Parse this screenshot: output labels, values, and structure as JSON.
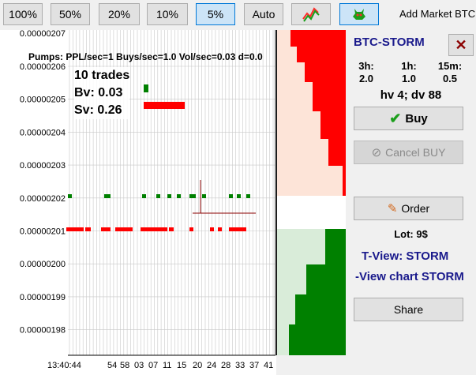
{
  "toolbar": {
    "zoom_buttons": [
      "100%",
      "50%",
      "20%",
      "10%",
      "5%",
      "Auto"
    ],
    "selected_zoom": "5%",
    "add_market": "Add Market BTC"
  },
  "chart": {
    "top_label": "0.00000207",
    "pumps_line": "Pumps: PPL/sec=1 Buys/sec=1.0  Vol/sec=0.03  d=0.0",
    "trades": "10 trades",
    "bv": "Bv: 0.03",
    "sv": "Sv: 0.26",
    "y_labels": [
      "0.00000206",
      "0.00000205",
      "0.00000204",
      "0.00000203",
      "0.00000202",
      "0.00000201",
      "0.00000200",
      "0.00000199",
      "0.00000198"
    ],
    "x_labels": [
      "13:40:44",
      "54",
      "58",
      "03",
      "07",
      "11",
      "15",
      "20",
      "24",
      "28",
      "33",
      "37",
      "41"
    ],
    "colors": {
      "buy": "#008000",
      "sell": "#ff0000",
      "grid": "#c8c8c8"
    }
  },
  "panel": {
    "pair": "BTC-STORM",
    "close_icon": "close-x-icon",
    "timeframes": [
      {
        "label": "3h:",
        "value": "2.0"
      },
      {
        "label": "1h:",
        "value": "1.0"
      },
      {
        "label": "15m:",
        "value": "0.5"
      }
    ],
    "hv_dv": "hv 4; dv 88",
    "buy_label": "Buy",
    "cancel_buy_label": "Cancel BUY",
    "order_label": "Order",
    "lot": "Lot: 9$",
    "tview": "T-View: STORM",
    "view_chart": "-View chart STORM",
    "share_label": "Share"
  }
}
